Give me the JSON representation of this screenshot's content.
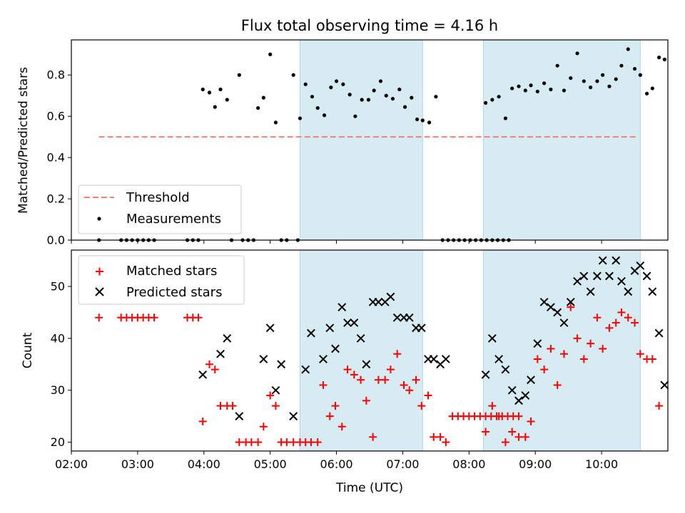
{
  "chart_data": [
    {
      "type": "scatter",
      "title": "Flux total observing time = 4.16 h",
      "xlabel": "",
      "ylabel": "Matched/Predicted stars",
      "ylim": [
        0,
        0.97
      ],
      "xlim": [
        "02:00",
        "11:00"
      ],
      "yticks": [
        "0.0",
        "0.2",
        "0.4",
        "0.6",
        "0.8"
      ],
      "legend_position": "lower-left",
      "colors": {
        "threshold": "#f07f7f",
        "measurements": "#000000",
        "shade": "#add8e6"
      },
      "shaded_intervals": [
        [
          "05:27",
          "07:18"
        ],
        [
          "08:13",
          "10:35"
        ]
      ],
      "threshold": {
        "name": "Threshold",
        "value": 0.5,
        "x": [
          "02:25",
          "10:32"
        ]
      },
      "series": [
        {
          "name": "Measurements",
          "points": [
            [
              "02:25",
              0
            ],
            [
              "02:45",
              0
            ],
            [
              "02:50",
              0
            ],
            [
              "02:55",
              0
            ],
            [
              "03:00",
              0
            ],
            [
              "03:05",
              0
            ],
            [
              "03:10",
              0
            ],
            [
              "03:15",
              0
            ],
            [
              "03:45",
              0
            ],
            [
              "03:50",
              0
            ],
            [
              "03:55",
              0
            ],
            [
              "04:25",
              0
            ],
            [
              "04:35",
              0
            ],
            [
              "04:40",
              0
            ],
            [
              "04:45",
              0
            ],
            [
              "05:10",
              0
            ],
            [
              "05:15",
              0
            ],
            [
              "05:25",
              0
            ],
            [
              "03:59",
              0.73
            ],
            [
              "04:05",
              0.715
            ],
            [
              "04:10",
              0.645
            ],
            [
              "04:15",
              0.73
            ],
            [
              "04:21",
              0.68
            ],
            [
              "04:32",
              0.8
            ],
            [
              "04:49",
              0.64
            ],
            [
              "04:54",
              0.69
            ],
            [
              "05:00",
              0.9
            ],
            [
              "05:05",
              0.57
            ],
            [
              "05:21",
              0.8
            ],
            [
              "05:27",
              0.59
            ],
            [
              "05:32",
              0.755
            ],
            [
              "05:38",
              0.695
            ],
            [
              "05:43",
              0.64
            ],
            [
              "05:49",
              0.605
            ],
            [
              "05:55",
              0.74
            ],
            [
              "06:00",
              0.77
            ],
            [
              "06:06",
              0.755
            ],
            [
              "06:12",
              0.705
            ],
            [
              "06:17",
              0.6
            ],
            [
              "06:23",
              0.68
            ],
            [
              "06:29",
              0.68
            ],
            [
              "06:34",
              0.725
            ],
            [
              "06:40",
              0.77
            ],
            [
              "06:45",
              0.7
            ],
            [
              "06:51",
              0.685
            ],
            [
              "06:57",
              0.73
            ],
            [
              "07:02",
              0.645
            ],
            [
              "07:08",
              0.69
            ],
            [
              "07:13",
              0.585
            ],
            [
              "07:18",
              0.58
            ],
            [
              "07:24",
              0.57
            ],
            [
              "07:30",
              0.695
            ],
            [
              "07:36",
              0
            ],
            [
              "07:41",
              0
            ],
            [
              "07:46",
              0
            ],
            [
              "07:51",
              0
            ],
            [
              "07:56",
              0
            ],
            [
              "08:01",
              0
            ],
            [
              "08:06",
              0
            ],
            [
              "08:11",
              0
            ],
            [
              "08:16",
              0
            ],
            [
              "08:21",
              0
            ],
            [
              "08:26",
              0
            ],
            [
              "08:31",
              0
            ],
            [
              "08:36",
              0
            ],
            [
              "08:15",
              0.665
            ],
            [
              "08:21",
              0.68
            ],
            [
              "08:27",
              0.695
            ],
            [
              "08:33",
              0.59
            ],
            [
              "08:39",
              0.735
            ],
            [
              "08:45",
              0.745
            ],
            [
              "08:51",
              0.725
            ],
            [
              "08:56",
              0.75
            ],
            [
              "09:02",
              0.72
            ],
            [
              "09:08",
              0.76
            ],
            [
              "09:14",
              0.73
            ],
            [
              "09:20",
              0.845
            ],
            [
              "09:26",
              0.725
            ],
            [
              "09:32",
              0.785
            ],
            [
              "09:38",
              0.905
            ],
            [
              "09:44",
              0.77
            ],
            [
              "09:50",
              0.74
            ],
            [
              "09:56",
              0.77
            ],
            [
              "10:01",
              0.8
            ],
            [
              "10:07",
              0.745
            ],
            [
              "10:13",
              0.78
            ],
            [
              "10:18",
              0.845
            ],
            [
              "10:24",
              0.925
            ],
            [
              "10:30",
              0.83
            ],
            [
              "10:35",
              0.8
            ],
            [
              "10:41",
              0.71
            ],
            [
              "10:46",
              0.735
            ],
            [
              "10:52",
              0.885
            ],
            [
              "10:57",
              0.875
            ]
          ]
        }
      ]
    },
    {
      "type": "scatter",
      "title": "",
      "xlabel": "Time (UTC)",
      "ylabel": "Count",
      "ylim": [
        18.3,
        57
      ],
      "xlim": [
        "02:00",
        "11:00"
      ],
      "xticks": [
        "02:00",
        "03:00",
        "04:00",
        "05:00",
        "06:00",
        "07:00",
        "08:00",
        "09:00",
        "10:00"
      ],
      "yticks": [
        "20",
        "30",
        "40",
        "50"
      ],
      "legend_position": "top-left",
      "colors": {
        "matched": "#ff0000",
        "predicted": "#000000",
        "shade": "#add8e6"
      },
      "shaded_intervals": [
        [
          "05:27",
          "07:18"
        ],
        [
          "08:13",
          "10:35"
        ]
      ],
      "series": [
        {
          "name": "Matched stars",
          "marker": "plus",
          "points": [
            [
              "02:25",
              44
            ],
            [
              "02:45",
              44
            ],
            [
              "02:50",
              44
            ],
            [
              "02:55",
              44
            ],
            [
              "03:00",
              44
            ],
            [
              "03:05",
              44
            ],
            [
              "03:10",
              44
            ],
            [
              "03:15",
              44
            ],
            [
              "03:45",
              44
            ],
            [
              "03:50",
              44
            ],
            [
              "03:55",
              44
            ],
            [
              "03:59",
              24
            ],
            [
              "04:05",
              35
            ],
            [
              "04:10",
              34
            ],
            [
              "04:15",
              27
            ],
            [
              "04:21",
              27
            ],
            [
              "04:26",
              27
            ],
            [
              "04:32",
              20
            ],
            [
              "04:38",
              20
            ],
            [
              "04:43",
              20
            ],
            [
              "04:49",
              20
            ],
            [
              "04:54",
              23
            ],
            [
              "05:00",
              29
            ],
            [
              "05:05",
              27
            ],
            [
              "05:10",
              20
            ],
            [
              "05:15",
              20
            ],
            [
              "05:21",
              20
            ],
            [
              "05:27",
              20
            ],
            [
              "05:32",
              20
            ],
            [
              "05:37",
              20
            ],
            [
              "05:43",
              20
            ],
            [
              "05:48",
              31
            ],
            [
              "05:54",
              25
            ],
            [
              "05:59",
              27
            ],
            [
              "06:05",
              23
            ],
            [
              "06:10",
              34
            ],
            [
              "06:16",
              33
            ],
            [
              "06:22",
              32
            ],
            [
              "06:27",
              28
            ],
            [
              "06:33",
              21
            ],
            [
              "06:38",
              32
            ],
            [
              "06:44",
              32
            ],
            [
              "06:49",
              34
            ],
            [
              "06:55",
              37
            ],
            [
              "07:01",
              31
            ],
            [
              "07:06",
              30
            ],
            [
              "07:12",
              32
            ],
            [
              "07:17",
              27
            ],
            [
              "07:23",
              29
            ],
            [
              "07:28",
              21
            ],
            [
              "07:34",
              21
            ],
            [
              "07:39",
              20
            ],
            [
              "07:45",
              25
            ],
            [
              "07:50",
              25
            ],
            [
              "07:55",
              25
            ],
            [
              "08:00",
              25
            ],
            [
              "08:05",
              25
            ],
            [
              "08:10",
              25
            ],
            [
              "08:15",
              25
            ],
            [
              "08:20",
              25
            ],
            [
              "08:25",
              25
            ],
            [
              "08:30",
              25
            ],
            [
              "08:35",
              25
            ],
            [
              "08:40",
              25
            ],
            [
              "08:45",
              25
            ],
            [
              "08:15",
              22
            ],
            [
              "08:21",
              27
            ],
            [
              "08:27",
              25
            ],
            [
              "08:33",
              20
            ],
            [
              "08:39",
              22
            ],
            [
              "08:45",
              21
            ],
            [
              "08:51",
              21
            ],
            [
              "08:56",
              24
            ],
            [
              "09:02",
              36
            ],
            [
              "09:08",
              34
            ],
            [
              "09:14",
              38
            ],
            [
              "09:20",
              31
            ],
            [
              "09:26",
              37
            ],
            [
              "09:32",
              46
            ],
            [
              "09:38",
              40
            ],
            [
              "09:44",
              36
            ],
            [
              "09:50",
              39
            ],
            [
              "09:56",
              44
            ],
            [
              "10:01",
              38
            ],
            [
              "10:07",
              42
            ],
            [
              "10:13",
              43
            ],
            [
              "10:18",
              45
            ],
            [
              "10:24",
              44
            ],
            [
              "10:30",
              43
            ],
            [
              "10:35",
              37
            ],
            [
              "10:41",
              36
            ],
            [
              "10:46",
              36
            ],
            [
              "10:52",
              27
            ]
          ]
        },
        {
          "name": "Predicted stars",
          "marker": "x",
          "points": [
            [
              "03:59",
              33
            ],
            [
              "04:15",
              37
            ],
            [
              "04:21",
              40
            ],
            [
              "04:32",
              25
            ],
            [
              "04:54",
              36
            ],
            [
              "05:00",
              42
            ],
            [
              "05:05",
              30
            ],
            [
              "05:10",
              35
            ],
            [
              "05:21",
              25
            ],
            [
              "05:32",
              34
            ],
            [
              "05:37",
              41
            ],
            [
              "05:48",
              36
            ],
            [
              "05:54",
              42
            ],
            [
              "05:59",
              38
            ],
            [
              "06:05",
              46
            ],
            [
              "06:10",
              43
            ],
            [
              "06:16",
              43
            ],
            [
              "06:22",
              40
            ],
            [
              "06:27",
              35
            ],
            [
              "06:33",
              47
            ],
            [
              "06:38",
              47
            ],
            [
              "06:44",
              47
            ],
            [
              "06:49",
              48
            ],
            [
              "06:55",
              44
            ],
            [
              "07:01",
              44
            ],
            [
              "07:06",
              44
            ],
            [
              "07:12",
              42
            ],
            [
              "07:17",
              42
            ],
            [
              "07:23",
              36
            ],
            [
              "07:28",
              36
            ],
            [
              "07:34",
              35
            ],
            [
              "07:39",
              36
            ],
            [
              "08:15",
              33
            ],
            [
              "08:21",
              40
            ],
            [
              "08:27",
              36
            ],
            [
              "08:33",
              34
            ],
            [
              "08:39",
              30
            ],
            [
              "08:45",
              28
            ],
            [
              "08:51",
              29
            ],
            [
              "08:56",
              32
            ],
            [
              "09:02",
              39
            ],
            [
              "09:08",
              47
            ],
            [
              "09:14",
              46
            ],
            [
              "09:20",
              45
            ],
            [
              "09:26",
              43
            ],
            [
              "09:32",
              47
            ],
            [
              "09:38",
              51
            ],
            [
              "09:44",
              52
            ],
            [
              "09:50",
              49
            ],
            [
              "09:56",
              52
            ],
            [
              "10:01",
              55
            ],
            [
              "10:07",
              52
            ],
            [
              "10:13",
              55
            ],
            [
              "10:18",
              51
            ],
            [
              "10:24",
              49
            ],
            [
              "10:30",
              53
            ],
            [
              "10:35",
              54
            ],
            [
              "10:41",
              52
            ],
            [
              "10:46",
              49
            ],
            [
              "10:52",
              41
            ],
            [
              "10:57",
              31
            ]
          ]
        }
      ]
    }
  ]
}
